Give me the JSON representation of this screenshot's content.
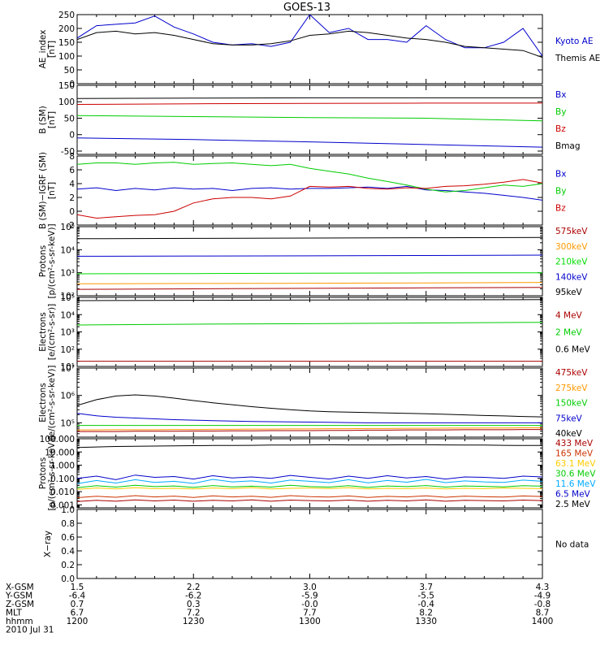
{
  "title": "GOES-13",
  "footer": {
    "rows": [
      {
        "label": "X-GSM",
        "values": [
          "1.5",
          "2.2",
          "3.0",
          "3.7",
          "4.3"
        ]
      },
      {
        "label": "Y-GSM",
        "values": [
          "-6.4",
          "-6.2",
          "-5.9",
          "-5.5",
          "-4.9"
        ]
      },
      {
        "label": "Z-GSM",
        "values": [
          "0.7",
          "0.3",
          "-0.0",
          "-0.4",
          "-0.8"
        ]
      },
      {
        "label": "MLT",
        "values": [
          "6.7",
          "7.2",
          "7.7",
          "8.2",
          "8.7"
        ]
      },
      {
        "label": "hhmm",
        "values": [
          "1200",
          "1230",
          "1300",
          "1330",
          "1400"
        ]
      }
    ],
    "date": "2010 Jul 31"
  },
  "chart_data": [
    {
      "type": "line",
      "ylabel": "AE_index\n[nT]",
      "scale": "linear",
      "ylim": [
        0,
        250
      ],
      "ticks": [
        0,
        50,
        100,
        150,
        200,
        250
      ],
      "tick_labels": [
        "0",
        "50",
        "100",
        "150",
        "200",
        "250"
      ],
      "x": [
        0,
        5,
        10,
        15,
        20,
        25,
        30,
        35,
        40,
        45,
        50,
        55,
        60,
        65,
        70,
        75,
        80,
        85,
        90,
        95,
        100,
        105,
        110,
        115,
        120
      ],
      "series": [
        {
          "name": "Kyoto AE",
          "color": "#0000cc",
          "values": [
            165,
            210,
            215,
            220,
            245,
            205,
            180,
            150,
            140,
            145,
            135,
            150,
            250,
            185,
            200,
            160,
            160,
            150,
            210,
            160,
            130,
            130,
            150,
            200,
            100
          ]
        },
        {
          "name": "Themis AE",
          "color": "#000000",
          "values": [
            160,
            185,
            190,
            180,
            185,
            175,
            160,
            145,
            140,
            140,
            145,
            155,
            175,
            180,
            190,
            185,
            175,
            165,
            160,
            150,
            135,
            130,
            125,
            120,
            95
          ]
        }
      ]
    },
    {
      "type": "line",
      "ylabel": "B (SM)\n[nT]",
      "scale": "linear",
      "ylim": [
        -60,
        150
      ],
      "ticks": [
        -50,
        0,
        50,
        100,
        150
      ],
      "tick_labels": [
        "-50",
        "0",
        "50",
        "100",
        "150"
      ],
      "x": [
        0,
        30,
        60,
        90,
        120
      ],
      "series": [
        {
          "name": "Bx",
          "color": "#0000cc",
          "values": [
            -10,
            -15,
            -22,
            -30,
            -38
          ]
        },
        {
          "name": "By",
          "color": "#00cc00",
          "values": [
            58,
            55,
            52,
            50,
            42
          ]
        },
        {
          "name": "Bz",
          "color": "#cc0000",
          "values": [
            92,
            94,
            95,
            96,
            96
          ]
        },
        {
          "name": "Bmag",
          "color": "#000000",
          "values": [
            110,
            111,
            112,
            112,
            112
          ]
        }
      ]
    },
    {
      "type": "line",
      "ylabel": "B (SM)−IGRF (SM)\n[nT]",
      "scale": "linear",
      "ylim": [
        -2,
        8
      ],
      "ticks": [
        -2,
        0,
        2,
        4,
        6,
        8
      ],
      "tick_labels": [
        "-2",
        "0",
        "2",
        "4",
        "6",
        "8"
      ],
      "x": [
        0,
        5,
        10,
        15,
        20,
        25,
        30,
        35,
        40,
        45,
        50,
        55,
        60,
        65,
        70,
        75,
        80,
        85,
        90,
        95,
        100,
        105,
        110,
        115,
        120
      ],
      "series": [
        {
          "name": "Bx",
          "color": "#0000cc",
          "values": [
            3.2,
            3.4,
            3.0,
            3.3,
            3.1,
            3.4,
            3.2,
            3.3,
            3.0,
            3.3,
            3.4,
            3.2,
            3.3,
            3.3,
            3.4,
            3.5,
            3.3,
            3.6,
            3.1,
            3.0,
            2.8,
            2.6,
            2.3,
            2.0,
            1.6
          ]
        },
        {
          "name": "By",
          "color": "#00cc00",
          "values": [
            6.8,
            7.0,
            7.0,
            6.8,
            7.0,
            7.1,
            6.8,
            6.9,
            7.0,
            6.8,
            6.6,
            6.8,
            6.2,
            5.8,
            5.4,
            4.8,
            4.3,
            3.8,
            3.2,
            2.8,
            3.0,
            3.4,
            3.8,
            3.6,
            4.0
          ]
        },
        {
          "name": "Bz",
          "color": "#cc0000",
          "values": [
            -0.5,
            -1.0,
            -0.8,
            -0.6,
            -0.5,
            0.0,
            1.2,
            1.8,
            2.0,
            2.0,
            1.8,
            2.2,
            3.6,
            3.5,
            3.6,
            3.3,
            3.2,
            3.4,
            3.3,
            3.6,
            3.7,
            3.9,
            4.2,
            4.6,
            4.1
          ]
        }
      ]
    },
    {
      "type": "line",
      "ylabel": "Protons\n[p/(cm²-s-sr-keV)]",
      "scale": "log",
      "ylim": [
        100,
        100000
      ],
      "ticks": [
        100,
        1000,
        10000,
        100000
      ],
      "tick_labels": [
        "10²",
        "10³",
        "10⁴",
        "10⁵"
      ],
      "x": [
        0,
        30,
        60,
        90,
        120
      ],
      "series": [
        {
          "name": "575keV",
          "color": "#aa0000",
          "values": [
            190,
            200,
            210,
            220,
            230
          ]
        },
        {
          "name": "300keV",
          "color": "#ff9900",
          "values": [
            330,
            340,
            350,
            360,
            380
          ]
        },
        {
          "name": "210keV",
          "color": "#00dd00",
          "values": [
            900,
            920,
            950,
            980,
            1000
          ]
        },
        {
          "name": "140keV",
          "color": "#0000cc",
          "values": [
            5200,
            5300,
            5400,
            5600,
            5800
          ]
        },
        {
          "name": "95keV",
          "color": "#000000",
          "values": [
            30000,
            31000,
            32000,
            33000,
            34000
          ]
        }
      ]
    },
    {
      "type": "line",
      "ylabel": "Electrons\n[e/(cm²-s-sr)]",
      "scale": "log",
      "ylim": [
        10,
        100000
      ],
      "ticks": [
        10,
        100,
        1000,
        10000,
        100000
      ],
      "tick_labels": [
        "10¹",
        "10²",
        "10³",
        "10⁴",
        "10⁵"
      ],
      "x": [
        0,
        30,
        60,
        90,
        120
      ],
      "series": [
        {
          "name": "4 MeV",
          "color": "#aa0000",
          "values": [
            20,
            20,
            20,
            20,
            20
          ]
        },
        {
          "name": "2 MeV",
          "color": "#00cc00",
          "values": [
            2500,
            2800,
            3000,
            3300,
            3600
          ]
        },
        {
          "name": "0.6 MeV",
          "color": "#000000",
          "values": [
            65000,
            68000,
            70000,
            72000,
            74000
          ]
        }
      ]
    },
    {
      "type": "line",
      "ylabel": "Electrons\n[e/(cm²-s-sr-keV)]",
      "scale": "log",
      "ylim": [
        30000,
        10000000
      ],
      "ticks": [
        100000,
        1000000,
        10000000
      ],
      "tick_labels": [
        "10⁵",
        "10⁶",
        "10⁷"
      ],
      "x": [
        0,
        5,
        10,
        15,
        20,
        25,
        30,
        35,
        40,
        45,
        50,
        55,
        60,
        65,
        70,
        75,
        80,
        85,
        90,
        95,
        100,
        105,
        110,
        115,
        120
      ],
      "series": [
        {
          "name": "475keV",
          "color": "#aa0000",
          "values": [
            48000,
            48000,
            48000,
            49000,
            49000,
            49000,
            50000,
            50000,
            51000,
            51000,
            52000,
            52000,
            52000,
            53000,
            53000,
            54000,
            54000,
            55000,
            55000,
            55000,
            56000,
            56000,
            56000,
            57000,
            57000
          ]
        },
        {
          "name": "275keV",
          "color": "#ff9900",
          "values": [
            55000,
            55000,
            56000,
            56000,
            56000,
            57000,
            57000,
            58000,
            58000,
            59000,
            59000,
            60000,
            60000,
            61000,
            61000,
            62000,
            62000,
            63000,
            63000,
            64000,
            64000,
            65000,
            65000,
            66000,
            66000
          ]
        },
        {
          "name": "150keV",
          "color": "#00cc00",
          "values": [
            80000,
            80000,
            80000,
            80000,
            80000,
            80000,
            80000,
            80000,
            80000,
            80000,
            80000,
            80000,
            80000,
            80000,
            80000,
            80000,
            80000,
            80000,
            80000,
            80000,
            80000,
            80000,
            80000,
            80000,
            80000
          ]
        },
        {
          "name": "75keV",
          "color": "#0000cc",
          "values": [
            220000,
            180000,
            160000,
            150000,
            140000,
            130000,
            125000,
            120000,
            115000,
            112000,
            110000,
            108000,
            106000,
            104000,
            102000,
            100000,
            100000,
            100000,
            100000,
            100000,
            100000,
            100000,
            100000,
            100000,
            100000
          ]
        },
        {
          "name": "40keV",
          "color": "#000000",
          "values": [
            430000,
            700000,
            950000,
            1050000,
            950000,
            800000,
            650000,
            540000,
            460000,
            390000,
            340000,
            300000,
            270000,
            255000,
            245000,
            238000,
            230000,
            222000,
            215000,
            205000,
            195000,
            185000,
            178000,
            170000,
            165000
          ]
        }
      ]
    },
    {
      "type": "line",
      "ylabel": "Protons\n[p/(cm²-s-sr-keV)]",
      "scale": "log",
      "ylim": [
        0.0006,
        100
      ],
      "ticks": [
        0.001,
        0.01,
        0.1,
        1,
        10,
        100
      ],
      "tick_labels": [
        "0.001",
        "0.010",
        "0.100",
        "1.000",
        "10.000",
        "100.000"
      ],
      "x": [
        0,
        5,
        10,
        15,
        20,
        25,
        30,
        35,
        40,
        45,
        50,
        55,
        60,
        65,
        70,
        75,
        80,
        85,
        90,
        95,
        100,
        105,
        110,
        115,
        120
      ],
      "series": [
        {
          "name": "433 MeV",
          "color": "#aa0000",
          "values": [
            0.0018,
            0.0022,
            0.0019,
            0.0024,
            0.002,
            0.0023,
            0.0019,
            0.0022,
            0.002,
            0.0024,
            0.0019,
            0.0023,
            0.0021,
            0.002,
            0.0023,
            0.0019,
            0.0022,
            0.002,
            0.0024,
            0.0019,
            0.0022,
            0.0021,
            0.002,
            0.0023,
            0.0021
          ]
        },
        {
          "name": "165 MeV",
          "color": "#cc3300",
          "values": [
            0.0035,
            0.0045,
            0.0038,
            0.005,
            0.004,
            0.0046,
            0.0036,
            0.0048,
            0.004,
            0.0045,
            0.0037,
            0.005,
            0.0042,
            0.0039,
            0.0047,
            0.0036,
            0.0044,
            0.004,
            0.0049,
            0.0038,
            0.0046,
            0.0041,
            0.0039,
            0.0047,
            0.0043
          ]
        },
        {
          "name": "63.1 MeV",
          "color": "#ffcc00",
          "values": [
            0.015,
            0.019,
            0.016,
            0.02,
            0.017,
            0.018,
            0.016,
            0.019,
            0.017,
            0.02,
            0.016,
            0.018,
            0.019,
            0.017,
            0.02,
            0.016,
            0.018,
            0.017,
            0.019,
            0.016,
            0.018,
            0.017,
            0.019,
            0.018,
            0.017
          ]
        },
        {
          "name": "30.6 MeV",
          "color": "#00cc00",
          "values": [
            0.02,
            0.028,
            0.022,
            0.03,
            0.024,
            0.027,
            0.021,
            0.029,
            0.023,
            0.026,
            0.022,
            0.03,
            0.024,
            0.022,
            0.028,
            0.021,
            0.027,
            0.024,
            0.029,
            0.022,
            0.027,
            0.025,
            0.023,
            0.028,
            0.026
          ]
        },
        {
          "name": "11.6 MeV",
          "color": "#00aaff",
          "values": [
            0.04,
            0.07,
            0.045,
            0.08,
            0.05,
            0.06,
            0.042,
            0.085,
            0.055,
            0.065,
            0.045,
            0.075,
            0.06,
            0.048,
            0.08,
            0.046,
            0.07,
            0.052,
            0.085,
            0.048,
            0.065,
            0.055,
            0.05,
            0.075,
            0.06
          ]
        },
        {
          "name": "6.5 MeV",
          "color": "#0000cc",
          "values": [
            0.1,
            0.15,
            0.08,
            0.18,
            0.12,
            0.14,
            0.09,
            0.16,
            0.11,
            0.13,
            0.1,
            0.17,
            0.12,
            0.09,
            0.15,
            0.1,
            0.16,
            0.11,
            0.14,
            0.09,
            0.13,
            0.12,
            0.1,
            0.15,
            0.13
          ]
        },
        {
          "name": "2.5 MeV",
          "color": "#000000",
          "values": [
            22,
            24,
            26,
            27,
            28,
            29,
            30,
            31,
            31,
            32,
            33,
            33,
            34,
            35,
            34,
            34,
            34,
            35,
            35,
            34,
            33,
            33,
            32,
            31,
            31
          ]
        }
      ]
    },
    {
      "type": "line",
      "ylabel": "X−ray",
      "scale": "linear",
      "ylim": [
        0,
        1
      ],
      "ticks": [
        0,
        0.2,
        0.4,
        0.6,
        0.8,
        1.0
      ],
      "tick_labels": [
        "0.0",
        "0.2",
        "0.4",
        "0.6",
        "0.8",
        "1.0"
      ],
      "x": [],
      "series": [],
      "legend_text": "No data"
    }
  ]
}
